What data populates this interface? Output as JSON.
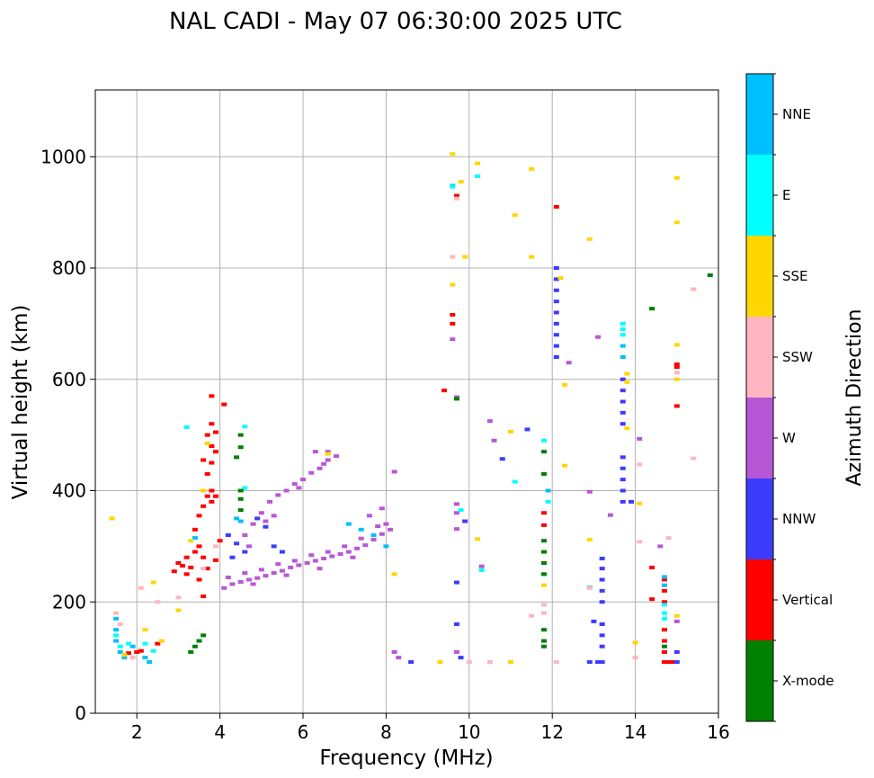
{
  "chart_data": {
    "type": "scatter",
    "title": "NAL CADI - May 07 06:30:00 2025 UTC",
    "xlabel": "Frequency (MHz)",
    "ylabel": "Virtual height (km)",
    "xlim": [
      1,
      16
    ],
    "ylim": [
      0,
      1120
    ],
    "xticks": [
      2,
      4,
      6,
      8,
      10,
      12,
      14,
      16
    ],
    "yticks": [
      0,
      200,
      400,
      600,
      800,
      1000
    ],
    "grid": true,
    "colorbar": {
      "label": "Azimuth Direction",
      "categories": [
        {
          "name": "X-mode",
          "color": "#008000"
        },
        {
          "name": "Vertical",
          "color": "#ff0000"
        },
        {
          "name": "NNW",
          "color": "#3c3cff"
        },
        {
          "name": "W",
          "color": "#b857d6"
        },
        {
          "name": "SSW",
          "color": "#ffb6c1"
        },
        {
          "name": "SSE",
          "color": "#ffd700"
        },
        {
          "name": "E",
          "color": "#00ffff"
        },
        {
          "name": "NNE",
          "color": "#00bfff"
        }
      ]
    },
    "series": [
      {
        "name": "W",
        "points": [
          [
            4.1,
            225
          ],
          [
            4.3,
            232
          ],
          [
            4.5,
            236
          ],
          [
            4.7,
            240
          ],
          [
            4.9,
            243
          ],
          [
            5.1,
            247
          ],
          [
            5.3,
            252
          ],
          [
            5.5,
            256
          ],
          [
            5.7,
            262
          ],
          [
            5.9,
            266
          ],
          [
            6.1,
            270
          ],
          [
            6.3,
            274
          ],
          [
            6.5,
            278
          ],
          [
            6.7,
            282
          ],
          [
            6.9,
            286
          ],
          [
            7.1,
            290
          ],
          [
            7.3,
            296
          ],
          [
            7.5,
            302
          ],
          [
            7.7,
            312
          ],
          [
            7.9,
            322
          ],
          [
            8.0,
            340
          ],
          [
            8.1,
            330
          ],
          [
            4.2,
            244
          ],
          [
            4.6,
            252
          ],
          [
            5.0,
            258
          ],
          [
            5.4,
            268
          ],
          [
            5.8,
            274
          ],
          [
            6.2,
            284
          ],
          [
            6.6,
            290
          ],
          [
            7.0,
            300
          ],
          [
            7.4,
            314
          ],
          [
            7.8,
            336
          ],
          [
            7.6,
            355
          ],
          [
            7.9,
            368
          ],
          [
            4.8,
            232
          ],
          [
            5.6,
            248
          ],
          [
            6.4,
            260
          ],
          [
            7.2,
            280
          ],
          [
            4.6,
            320
          ],
          [
            4.8,
            340
          ],
          [
            5.0,
            360
          ],
          [
            5.2,
            380
          ],
          [
            5.4,
            392
          ],
          [
            5.6,
            400
          ],
          [
            5.8,
            412
          ],
          [
            6.0,
            420
          ],
          [
            6.2,
            432
          ],
          [
            6.4,
            440
          ],
          [
            6.6,
            455
          ],
          [
            6.8,
            462
          ],
          [
            5.1,
            345
          ],
          [
            4.7,
            300
          ],
          [
            5.3,
            355
          ],
          [
            5.9,
            405
          ],
          [
            6.5,
            448
          ],
          [
            6.3,
            470
          ],
          [
            6.6,
            470
          ],
          [
            8.2,
            434
          ],
          [
            8.2,
            110
          ],
          [
            8.3,
            100
          ],
          [
            9.6,
            672
          ],
          [
            9.7,
            568
          ],
          [
            9.7,
            376
          ],
          [
            9.7,
            360
          ],
          [
            9.7,
            331
          ],
          [
            9.7,
            110
          ],
          [
            10.3,
            264
          ],
          [
            10.5,
            525
          ],
          [
            10.6,
            490
          ],
          [
            12.4,
            630
          ],
          [
            12.9,
            398
          ],
          [
            13.1,
            676
          ],
          [
            13.4,
            356
          ],
          [
            14.1,
            493
          ],
          [
            15.0,
            165
          ],
          [
            14.6,
            300
          ]
        ]
      },
      {
        "name": "Vertical",
        "points": [
          [
            2.0,
            110
          ],
          [
            2.1,
            112
          ],
          [
            1.8,
            108
          ],
          [
            2.5,
            125
          ],
          [
            2.9,
            255
          ],
          [
            3.0,
            270
          ],
          [
            3.1,
            265
          ],
          [
            3.2,
            280
          ],
          [
            3.3,
            262
          ],
          [
            3.4,
            290
          ],
          [
            3.5,
            300
          ],
          [
            3.6,
            280
          ],
          [
            3.7,
            260
          ],
          [
            3.4,
            330
          ],
          [
            3.5,
            355
          ],
          [
            3.6,
            372
          ],
          [
            3.7,
            390
          ],
          [
            3.8,
            400
          ],
          [
            3.9,
            390
          ],
          [
            3.7,
            430
          ],
          [
            3.8,
            450
          ],
          [
            3.6,
            455
          ],
          [
            3.8,
            480
          ],
          [
            3.9,
            470
          ],
          [
            3.7,
            500
          ],
          [
            3.8,
            520
          ],
          [
            3.9,
            505
          ],
          [
            3.8,
            570
          ],
          [
            4.1,
            555
          ],
          [
            4.0,
            310
          ],
          [
            3.2,
            250
          ],
          [
            3.5,
            240
          ],
          [
            3.9,
            275
          ],
          [
            3.6,
            210
          ],
          [
            3.8,
            380
          ],
          [
            9.4,
            580
          ],
          [
            9.6,
            716
          ],
          [
            9.6,
            700
          ],
          [
            9.7,
            930
          ],
          [
            11.8,
            360
          ],
          [
            11.8,
            338
          ],
          [
            12.1,
            910
          ],
          [
            14.4,
            262
          ],
          [
            14.4,
            205
          ],
          [
            14.7,
            240
          ],
          [
            14.7,
            220
          ],
          [
            14.7,
            200
          ],
          [
            14.7,
            150
          ],
          [
            14.7,
            130
          ],
          [
            14.7,
            110
          ],
          [
            14.7,
            92
          ],
          [
            14.8,
            92
          ],
          [
            14.9,
            92
          ],
          [
            15.0,
            552
          ],
          [
            15.0,
            627
          ],
          [
            15.0,
            622
          ]
        ]
      },
      {
        "name": "NNW",
        "points": [
          [
            4.2,
            320
          ],
          [
            4.4,
            305
          ],
          [
            4.6,
            290
          ],
          [
            4.9,
            350
          ],
          [
            5.1,
            335
          ],
          [
            5.3,
            300
          ],
          [
            5.5,
            290
          ],
          [
            4.3,
            280
          ],
          [
            9.9,
            345
          ],
          [
            9.7,
            235
          ],
          [
            9.7,
            160
          ],
          [
            9.8,
            100
          ],
          [
            10.8,
            457
          ],
          [
            11.4,
            510
          ],
          [
            12.1,
            800
          ],
          [
            12.1,
            780
          ],
          [
            12.1,
            760
          ],
          [
            12.1,
            740
          ],
          [
            12.1,
            720
          ],
          [
            12.1,
            700
          ],
          [
            12.1,
            680
          ],
          [
            12.1,
            660
          ],
          [
            12.1,
            640
          ],
          [
            12.9,
            92
          ],
          [
            13.0,
            165
          ],
          [
            13.2,
            278
          ],
          [
            13.2,
            260
          ],
          [
            13.2,
            240
          ],
          [
            13.2,
            220
          ],
          [
            13.2,
            200
          ],
          [
            13.2,
            160
          ],
          [
            13.2,
            140
          ],
          [
            13.2,
            120
          ],
          [
            13.2,
            92
          ],
          [
            13.7,
            460
          ],
          [
            13.7,
            440
          ],
          [
            13.7,
            420
          ],
          [
            13.7,
            400
          ],
          [
            13.7,
            380
          ],
          [
            13.7,
            600
          ],
          [
            13.7,
            580
          ],
          [
            13.7,
            560
          ],
          [
            13.7,
            540
          ],
          [
            13.7,
            520
          ],
          [
            13.9,
            380
          ],
          [
            15.0,
            92
          ],
          [
            15.0,
            110
          ],
          [
            8.6,
            92
          ],
          [
            13.1,
            92
          ]
        ]
      },
      {
        "name": "NNE",
        "points": [
          [
            1.5,
            170
          ],
          [
            1.5,
            150
          ],
          [
            1.5,
            130
          ],
          [
            1.6,
            110
          ],
          [
            1.7,
            100
          ],
          [
            1.9,
            120
          ],
          [
            2.2,
            100
          ],
          [
            2.3,
            92
          ],
          [
            3.4,
            315
          ],
          [
            4.4,
            350
          ],
          [
            4.5,
            345
          ],
          [
            7.1,
            340
          ],
          [
            7.4,
            330
          ],
          [
            7.7,
            320
          ],
          [
            8.0,
            300
          ],
          [
            9.6,
            948
          ],
          [
            11.9,
            400
          ],
          [
            13.7,
            660
          ],
          [
            13.7,
            640
          ],
          [
            14.7,
            245
          ],
          [
            14.7,
            230
          ],
          [
            12.9,
            226
          ]
        ]
      },
      {
        "name": "E",
        "points": [
          [
            1.5,
            140
          ],
          [
            1.6,
            120
          ],
          [
            1.8,
            125
          ],
          [
            2.2,
            125
          ],
          [
            2.4,
            112
          ],
          [
            3.2,
            514
          ],
          [
            4.6,
            405
          ],
          [
            9.6,
            946
          ],
          [
            9.8,
            365
          ],
          [
            10.2,
            965
          ],
          [
            10.3,
            257
          ],
          [
            11.1,
            416
          ],
          [
            11.8,
            490
          ],
          [
            11.9,
            380
          ],
          [
            13.7,
            700
          ],
          [
            13.7,
            690
          ],
          [
            13.7,
            680
          ],
          [
            14.7,
            195
          ],
          [
            14.7,
            180
          ],
          [
            14.7,
            170
          ],
          [
            4.6,
            515
          ]
        ]
      },
      {
        "name": "SSE",
        "points": [
          [
            1.4,
            350
          ],
          [
            1.7,
            105
          ],
          [
            2.2,
            150
          ],
          [
            2.4,
            235
          ],
          [
            2.6,
            130
          ],
          [
            3.0,
            185
          ],
          [
            3.3,
            310
          ],
          [
            3.6,
            400
          ],
          [
            3.7,
            485
          ],
          [
            6.6,
            466
          ],
          [
            8.2,
            250
          ],
          [
            9.3,
            92
          ],
          [
            9.6,
            1005
          ],
          [
            9.6,
            770
          ],
          [
            9.9,
            820
          ],
          [
            10.2,
            988
          ],
          [
            10.2,
            313
          ],
          [
            11.0,
            506
          ],
          [
            11.0,
            92
          ],
          [
            11.1,
            895
          ],
          [
            11.5,
            978
          ],
          [
            11.5,
            820
          ],
          [
            11.8,
            230
          ],
          [
            12.2,
            782
          ],
          [
            12.3,
            590
          ],
          [
            12.3,
            445
          ],
          [
            12.9,
            852
          ],
          [
            12.9,
            312
          ],
          [
            13.8,
            512
          ],
          [
            13.8,
            595
          ],
          [
            13.8,
            610
          ],
          [
            14.0,
            127
          ],
          [
            14.1,
            377
          ],
          [
            14.4,
            727
          ],
          [
            15.0,
            962
          ],
          [
            15.0,
            882
          ],
          [
            15.0,
            662
          ],
          [
            15.0,
            175
          ],
          [
            15.0,
            600
          ],
          [
            9.8,
            955
          ]
        ]
      },
      {
        "name": "SSW",
        "points": [
          [
            1.5,
            180
          ],
          [
            1.6,
            160
          ],
          [
            1.9,
            100
          ],
          [
            2.1,
            225
          ],
          [
            2.5,
            200
          ],
          [
            3.0,
            208
          ],
          [
            3.6,
            260
          ],
          [
            3.9,
            300
          ],
          [
            9.6,
            820
          ],
          [
            10.0,
            92
          ],
          [
            10.5,
            92
          ],
          [
            11.5,
            175
          ],
          [
            11.8,
            195
          ],
          [
            11.8,
            180
          ],
          [
            12.1,
            92
          ],
          [
            12.9,
            225
          ],
          [
            14.0,
            100
          ],
          [
            14.1,
            308
          ],
          [
            14.1,
            447
          ],
          [
            15.0,
            612
          ],
          [
            15.4,
            762
          ],
          [
            15.4,
            458
          ],
          [
            14.8,
            315
          ],
          [
            9.7,
            925
          ]
        ]
      },
      {
        "name": "X-mode",
        "points": [
          [
            3.3,
            110
          ],
          [
            3.4,
            120
          ],
          [
            3.5,
            130
          ],
          [
            3.6,
            140
          ],
          [
            4.5,
            500
          ],
          [
            4.5,
            478
          ],
          [
            4.4,
            460
          ],
          [
            4.5,
            400
          ],
          [
            4.5,
            385
          ],
          [
            4.5,
            365
          ],
          [
            9.7,
            565
          ],
          [
            11.8,
            470
          ],
          [
            11.8,
            430
          ],
          [
            11.8,
            310
          ],
          [
            11.8,
            290
          ],
          [
            11.8,
            270
          ],
          [
            11.8,
            250
          ],
          [
            11.8,
            150
          ],
          [
            11.8,
            130
          ],
          [
            11.8,
            120
          ],
          [
            14.7,
            120
          ],
          [
            15.8,
            787
          ],
          [
            14.4,
            727
          ]
        ]
      }
    ]
  }
}
